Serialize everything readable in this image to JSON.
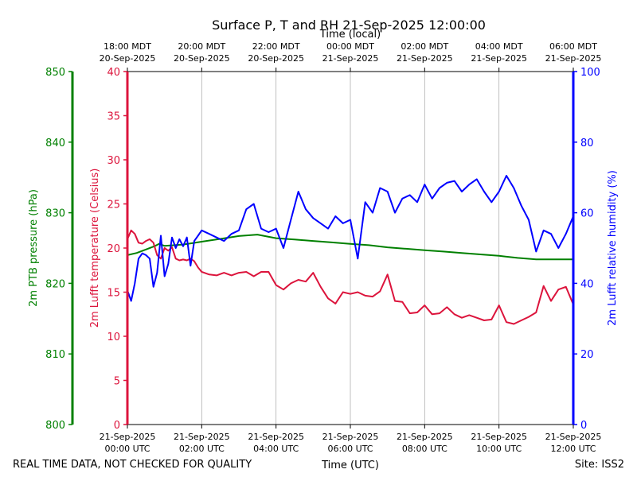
{
  "chart_data": {
    "type": "line",
    "title": "Surface P, T and RH 21-Sep-2025 12:00:00",
    "top_axis_label": "Time (local)",
    "bottom_axis_label": "Time (UTC)",
    "footer_left": "REAL TIME DATA, NOT CHECKED FOR QUALITY",
    "footer_right": "Site: ISS2",
    "x_range_hours": [
      0,
      12
    ],
    "grid": "vertical lines every 2 hours",
    "bottom_ticks": [
      {
        "hour": 0,
        "line1": "21-Sep-2025",
        "line2": "00:00 UTC"
      },
      {
        "hour": 2,
        "line1": "21-Sep-2025",
        "line2": "02:00 UTC"
      },
      {
        "hour": 4,
        "line1": "21-Sep-2025",
        "line2": "04:00 UTC"
      },
      {
        "hour": 6,
        "line1": "21-Sep-2025",
        "line2": "06:00 UTC"
      },
      {
        "hour": 8,
        "line1": "21-Sep-2025",
        "line2": "08:00 UTC"
      },
      {
        "hour": 10,
        "line1": "21-Sep-2025",
        "line2": "10:00 UTC"
      },
      {
        "hour": 12,
        "line1": "21-Sep-2025",
        "line2": "12:00 UTC"
      }
    ],
    "top_ticks": [
      {
        "hour": 0,
        "line1": "18:00 MDT",
        "line2": "20-Sep-2025"
      },
      {
        "hour": 2,
        "line1": "20:00 MDT",
        "line2": "20-Sep-2025"
      },
      {
        "hour": 4,
        "line1": "22:00 MDT",
        "line2": "20-Sep-2025"
      },
      {
        "hour": 6,
        "line1": "00:00 MDT",
        "line2": "21-Sep-2025"
      },
      {
        "hour": 8,
        "line1": "02:00 MDT",
        "line2": "21-Sep-2025"
      },
      {
        "hour": 10,
        "line1": "04:00 MDT",
        "line2": "21-Sep-2025"
      },
      {
        "hour": 12,
        "line1": "06:00 MDT",
        "line2": "21-Sep-2025"
      }
    ],
    "axes": {
      "pressure": {
        "label": "2m PTB pressure (hPa)",
        "ylim": [
          800,
          850
        ],
        "ticks": [
          800,
          810,
          820,
          830,
          840,
          850
        ],
        "color": "#008000"
      },
      "temperature": {
        "label": "2m Lufft temperature (Celsius)",
        "ylim": [
          0,
          40
        ],
        "ticks": [
          0,
          5,
          10,
          15,
          20,
          25,
          30,
          35,
          40
        ],
        "color": "#dc143c"
      },
      "humidity": {
        "label": "2m Lufft relative humidity (%)",
        "ylim": [
          0,
          100
        ],
        "ticks": [
          0,
          20,
          40,
          60,
          80,
          100
        ],
        "color": "#0000ff"
      }
    },
    "series": [
      {
        "name": "2m PTB pressure (hPa)",
        "axis": "pressure",
        "color": "#008000",
        "x": [
          0,
          0.25,
          0.5,
          0.75,
          0.85,
          1.0,
          1.5,
          2.0,
          2.5,
          3.0,
          3.5,
          4.0,
          4.5,
          5.0,
          5.5,
          6.0,
          6.5,
          7.0,
          7.5,
          8.0,
          8.5,
          9.0,
          9.5,
          10.0,
          10.5,
          11.0,
          11.5,
          12.0
        ],
        "values": [
          824.0,
          824.3,
          824.8,
          825.3,
          825.6,
          825.3,
          825.5,
          825.9,
          826.3,
          826.7,
          826.9,
          826.4,
          826.2,
          826.0,
          825.8,
          825.6,
          825.4,
          825.1,
          824.9,
          824.7,
          824.5,
          824.3,
          824.1,
          823.9,
          823.6,
          823.4,
          823.4,
          823.4
        ]
      },
      {
        "name": "2m Lufft temperature (Celsius)",
        "axis": "temperature",
        "color": "#dc143c",
        "x": [
          0,
          0.1,
          0.2,
          0.3,
          0.4,
          0.5,
          0.6,
          0.7,
          0.8,
          0.9,
          1.0,
          1.1,
          1.2,
          1.3,
          1.4,
          1.5,
          1.6,
          1.7,
          1.8,
          1.9,
          2.0,
          2.2,
          2.4,
          2.6,
          2.8,
          3.0,
          3.2,
          3.4,
          3.6,
          3.8,
          4.0,
          4.2,
          4.4,
          4.6,
          4.8,
          5.0,
          5.2,
          5.4,
          5.6,
          5.8,
          6.0,
          6.2,
          6.4,
          6.6,
          6.8,
          7.0,
          7.2,
          7.4,
          7.6,
          7.8,
          8.0,
          8.2,
          8.4,
          8.6,
          8.8,
          9.0,
          9.2,
          9.4,
          9.6,
          9.8,
          10.0,
          10.2,
          10.4,
          10.6,
          10.8,
          11.0,
          11.2,
          11.4,
          11.6,
          11.8,
          12.0
        ],
        "values": [
          21.0,
          22.0,
          21.6,
          20.6,
          20.5,
          20.8,
          21.0,
          20.6,
          19.2,
          18.8,
          20.0,
          19.7,
          20.1,
          18.8,
          18.6,
          18.7,
          18.6,
          18.8,
          18.5,
          17.8,
          17.3,
          17.0,
          16.9,
          17.2,
          16.9,
          17.2,
          17.3,
          16.8,
          17.3,
          17.3,
          15.8,
          15.3,
          16.0,
          16.4,
          16.2,
          17.2,
          15.6,
          14.3,
          13.7,
          15.0,
          14.8,
          15.0,
          14.6,
          14.5,
          15.1,
          17.0,
          14.0,
          13.9,
          12.6,
          12.7,
          13.5,
          12.5,
          12.6,
          13.3,
          12.5,
          12.1,
          12.4,
          12.1,
          11.8,
          11.9,
          13.5,
          11.6,
          11.4,
          11.8,
          12.2,
          12.7,
          15.7,
          14.0,
          15.3,
          15.6,
          13.6
        ]
      },
      {
        "name": "2m Lufft relative humidity (%)",
        "axis": "humidity",
        "color": "#0000ff",
        "x": [
          0,
          0.1,
          0.2,
          0.3,
          0.4,
          0.5,
          0.6,
          0.7,
          0.8,
          0.9,
          1.0,
          1.1,
          1.2,
          1.3,
          1.4,
          1.5,
          1.6,
          1.7,
          1.8,
          1.9,
          2.0,
          2.2,
          2.4,
          2.6,
          2.8,
          3.0,
          3.2,
          3.4,
          3.6,
          3.8,
          4.0,
          4.2,
          4.4,
          4.6,
          4.8,
          5.0,
          5.2,
          5.4,
          5.6,
          5.8,
          6.0,
          6.2,
          6.4,
          6.6,
          6.8,
          7.0,
          7.2,
          7.4,
          7.6,
          7.8,
          8.0,
          8.2,
          8.4,
          8.6,
          8.8,
          9.0,
          9.2,
          9.4,
          9.6,
          9.8,
          10.0,
          10.2,
          10.4,
          10.6,
          10.8,
          11.0,
          11.2,
          11.4,
          11.6,
          11.8,
          12.0
        ],
        "values": [
          38.0,
          35.0,
          40.0,
          47.0,
          48.5,
          48.0,
          47.0,
          39.0,
          43.0,
          53.5,
          42.0,
          45.5,
          53.0,
          50.0,
          52.5,
          50.5,
          53.0,
          45.0,
          52.0,
          53.5,
          55.0,
          54.0,
          53.0,
          52.0,
          54.0,
          55.0,
          61.0,
          62.5,
          55.5,
          54.5,
          55.5,
          50.0,
          58.0,
          66.0,
          61.0,
          58.5,
          57.0,
          55.5,
          59.0,
          57.0,
          58.0,
          47.0,
          63.0,
          60.0,
          67.0,
          66.0,
          60.0,
          64.0,
          65.0,
          63.0,
          68.0,
          64.0,
          67.0,
          68.5,
          69.0,
          66.0,
          68.0,
          69.5,
          66.0,
          63.0,
          66.0,
          70.5,
          67.0,
          62.0,
          58.0,
          49.0,
          55.0,
          54.0,
          50.0,
          54.0,
          59.0
        ]
      }
    ]
  }
}
